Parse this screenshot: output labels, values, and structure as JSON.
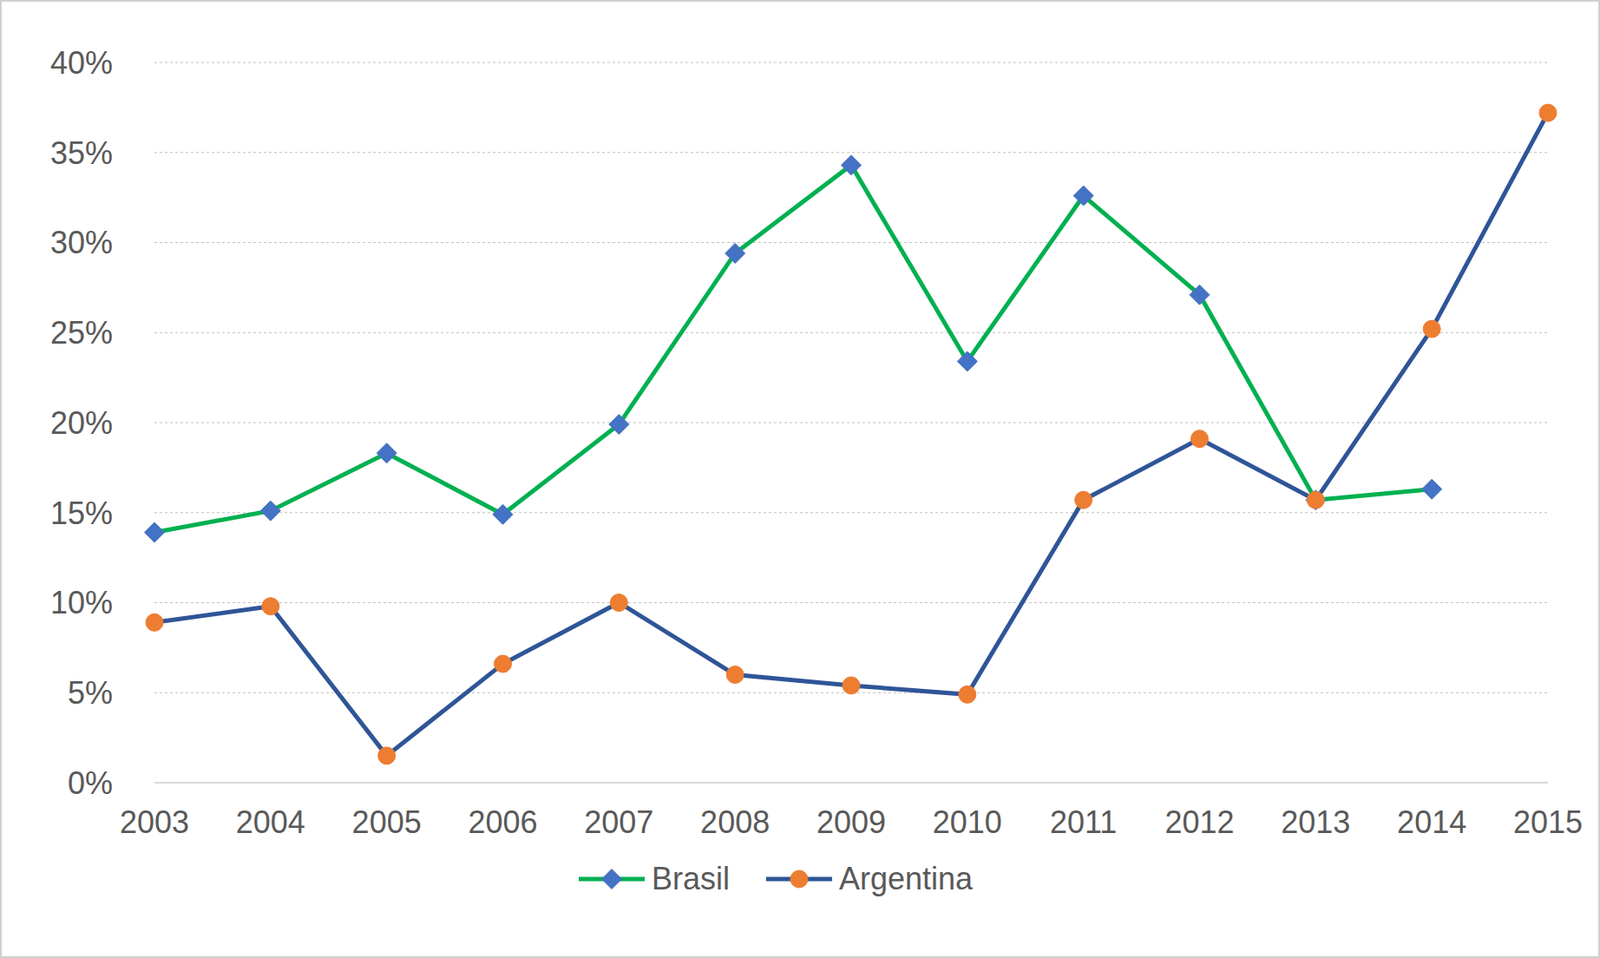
{
  "chart_data": {
    "type": "line",
    "categories": [
      "2003",
      "2004",
      "2005",
      "2006",
      "2007",
      "2008",
      "2009",
      "2010",
      "2011",
      "2012",
      "2013",
      "2014",
      "2015"
    ],
    "series": [
      {
        "name": "Brasil",
        "color": "#00b050",
        "marker": "diamond",
        "values": [
          13.9,
          15.1,
          18.3,
          14.9,
          19.9,
          29.4,
          34.3,
          23.4,
          32.6,
          27.1,
          15.7,
          16.3,
          null
        ]
      },
      {
        "name": "Argentina",
        "color": "#2f5597",
        "marker": "circle",
        "values": [
          8.9,
          9.8,
          1.5,
          6.6,
          10.0,
          6.0,
          5.4,
          4.9,
          15.7,
          19.1,
          15.7,
          25.2,
          37.2
        ]
      }
    ],
    "ylim": [
      0,
      40
    ],
    "yticks": [
      {
        "value": 0,
        "label": "0%"
      },
      {
        "value": 5,
        "label": "5%"
      },
      {
        "value": 10,
        "label": "10%"
      },
      {
        "value": 15,
        "label": "15%"
      },
      {
        "value": 20,
        "label": "20%"
      },
      {
        "value": 25,
        "label": "25%"
      },
      {
        "value": 30,
        "label": "30%"
      },
      {
        "value": 35,
        "label": "35%"
      },
      {
        "value": 40,
        "label": "40%"
      }
    ],
    "grid": true,
    "legend": "bottom"
  }
}
